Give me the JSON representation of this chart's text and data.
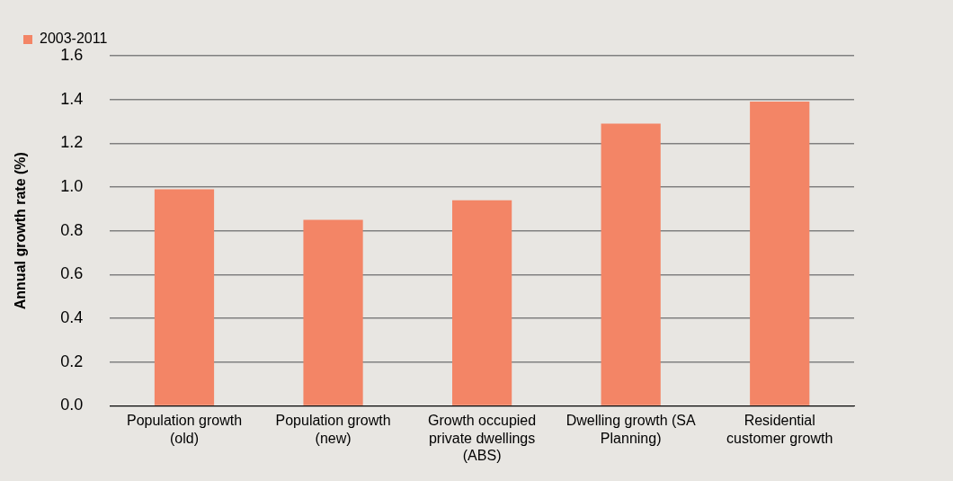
{
  "chart_data": {
    "type": "bar",
    "ylabel": "Annual growth rate (%)",
    "categories": [
      "Population growth (old)",
      "Population growth (new)",
      "Growth occupied private dwellings (ABS)",
      "Dwelling growth (SA Planning)",
      "Residential customer growth"
    ],
    "series": [
      {
        "name": "2003-2011",
        "color": "#f38566",
        "values": [
          0.99,
          0.85,
          0.94,
          1.29,
          1.39
        ]
      }
    ],
    "ylim": [
      0,
      1.6
    ],
    "yticks": [
      {
        "value": 0,
        "label": "0.0"
      },
      0.2,
      0.4,
      0.6,
      0.8,
      {
        "value": 1,
        "label": "1.0"
      },
      1.2,
      1.4,
      1.6
    ],
    "grid": "y",
    "legend": "top left"
  }
}
